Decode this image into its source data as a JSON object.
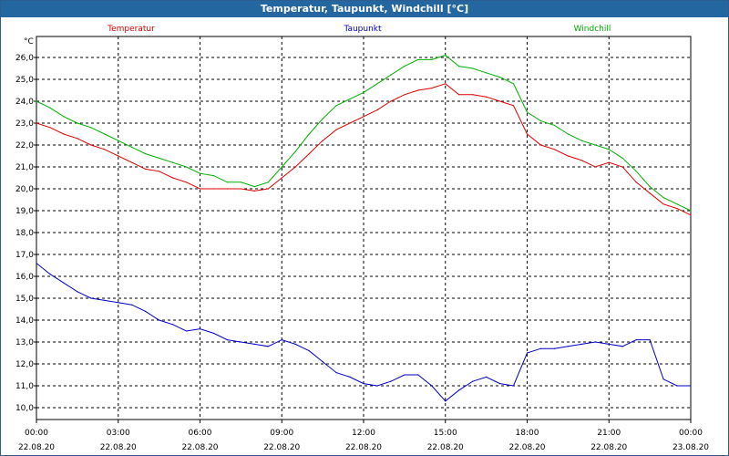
{
  "window": {
    "title": "Temperatur, Taupunkt, Windchill [°C]"
  },
  "chart_data": {
    "type": "line",
    "title": "Temperatur, Taupunkt, Windchill [°C]",
    "ylabel": "°C",
    "ylim": [
      10.0,
      26.0
    ],
    "y_ticks": [
      "10,0",
      "11,0",
      "12,0",
      "13,0",
      "14,0",
      "15,0",
      "16,0",
      "17,0",
      "18,0",
      "19,0",
      "20,0",
      "21,0",
      "22,0",
      "23,0",
      "24,0",
      "25,0",
      "26,0"
    ],
    "x_ticks": [
      {
        "time": "00:00",
        "date": "22.08.20"
      },
      {
        "time": "03:00",
        "date": "22.08.20"
      },
      {
        "time": "06:00",
        "date": "22.08.20"
      },
      {
        "time": "09:00",
        "date": "22.08.20"
      },
      {
        "time": "12:00",
        "date": "22.08.20"
      },
      {
        "time": "15:00",
        "date": "22.08.20"
      },
      {
        "time": "18:00",
        "date": "22.08.20"
      },
      {
        "time": "21:00",
        "date": "22.08.20"
      },
      {
        "time": "00:00",
        "date": "23.08.20"
      }
    ],
    "x": [
      "00:00",
      "00:30",
      "01:00",
      "01:30",
      "02:00",
      "02:30",
      "03:00",
      "03:30",
      "04:00",
      "04:30",
      "05:00",
      "05:30",
      "06:00",
      "06:30",
      "07:00",
      "07:30",
      "08:00",
      "08:30",
      "09:00",
      "09:30",
      "10:00",
      "10:30",
      "11:00",
      "11:30",
      "12:00",
      "12:30",
      "13:00",
      "13:30",
      "14:00",
      "14:30",
      "15:00",
      "15:30",
      "16:00",
      "16:30",
      "17:00",
      "17:30",
      "18:00",
      "18:30",
      "19:00",
      "19:30",
      "20:00",
      "20:30",
      "21:00",
      "21:30",
      "22:00",
      "22:30",
      "23:00",
      "23:30",
      "24:00"
    ],
    "series": [
      {
        "name": "Temperatur",
        "color": "#e00000",
        "values": [
          23.0,
          22.8,
          22.5,
          22.3,
          22.0,
          21.8,
          21.5,
          21.2,
          20.9,
          20.8,
          20.5,
          20.3,
          20.0,
          20.0,
          20.0,
          20.0,
          19.9,
          20.0,
          20.5,
          21.0,
          21.6,
          22.2,
          22.7,
          23.0,
          23.3,
          23.6,
          24.0,
          24.3,
          24.5,
          24.6,
          24.8,
          24.3,
          24.3,
          24.2,
          24.0,
          23.8,
          22.5,
          22.0,
          21.8,
          21.5,
          21.3,
          21.0,
          21.2,
          21.0,
          20.3,
          19.8,
          19.3,
          19.1,
          18.8
        ]
      },
      {
        "name": "Taupunkt",
        "color": "#0000c8",
        "values": [
          16.6,
          16.1,
          15.7,
          15.3,
          15.0,
          14.9,
          14.8,
          14.7,
          14.4,
          14.0,
          13.8,
          13.5,
          13.6,
          13.4,
          13.1,
          13.0,
          12.9,
          12.8,
          13.1,
          12.9,
          12.6,
          12.1,
          11.6,
          11.4,
          11.1,
          11.0,
          11.2,
          11.5,
          11.5,
          11.0,
          10.3,
          10.8,
          11.2,
          11.4,
          11.1,
          11.0,
          12.5,
          12.7,
          12.7,
          12.8,
          12.9,
          13.0,
          12.9,
          12.8,
          13.1,
          13.1,
          11.3,
          11.0,
          11.0
        ]
      },
      {
        "name": "Windchill",
        "color": "#00b000",
        "values": [
          24.0,
          23.7,
          23.3,
          23.0,
          22.8,
          22.5,
          22.2,
          21.9,
          21.6,
          21.4,
          21.2,
          21.0,
          20.7,
          20.6,
          20.3,
          20.3,
          20.1,
          20.3,
          21.0,
          21.7,
          22.5,
          23.2,
          23.8,
          24.1,
          24.4,
          24.8,
          25.2,
          25.6,
          25.9,
          25.9,
          26.1,
          25.6,
          25.5,
          25.3,
          25.1,
          24.8,
          23.5,
          23.1,
          22.9,
          22.5,
          22.2,
          22.0,
          21.8,
          21.4,
          20.8,
          20.1,
          19.6,
          19.3,
          19.0
        ]
      }
    ],
    "grid": true,
    "legend_position": "top"
  }
}
